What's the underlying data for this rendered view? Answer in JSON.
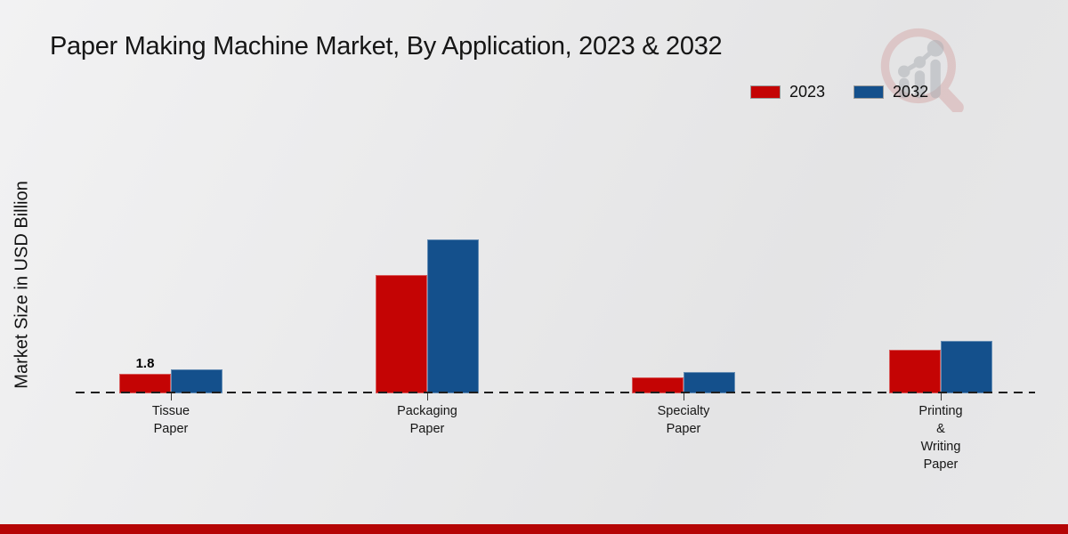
{
  "title": "Paper Making Machine Market, By Application, 2023 & 2032",
  "y_axis_label": "Market Size in USD Billion",
  "legend": [
    {
      "label": "2023",
      "color": "#c40404"
    },
    {
      "label": "2032",
      "color": "#14508c"
    }
  ],
  "watermark": {
    "icon": "mrfr-magnifier-bar-chart-logo"
  },
  "footer": {
    "bar_color": "#b50505"
  },
  "chart_data": {
    "type": "bar",
    "title": "Paper Making Machine Market, By Application, 2023 & 2032",
    "xlabel": "",
    "ylabel": "Market Size in USD Billion",
    "categories": [
      "Tissue Paper",
      "Packaging Paper",
      "Specialty Paper",
      "Printing & Writing Paper"
    ],
    "category_display": [
      "Tissue\nPaper",
      "Packaging\nPaper",
      "Specialty\nPaper",
      "Printing\n&\nWriting\nPaper"
    ],
    "series": [
      {
        "name": "2023",
        "color": "#c40404",
        "values": [
          1.8,
          10.9,
          1.5,
          4.0
        ]
      },
      {
        "name": "2032",
        "color": "#14508c",
        "values": [
          2.2,
          14.2,
          2.0,
          4.8
        ]
      }
    ],
    "data_labels": [
      {
        "series": "2023",
        "category_index": 0,
        "text": "1.8"
      }
    ],
    "ylim": [
      0,
      16
    ],
    "grid": false,
    "baseline_style": "dashed",
    "legend_position": "top-right"
  }
}
